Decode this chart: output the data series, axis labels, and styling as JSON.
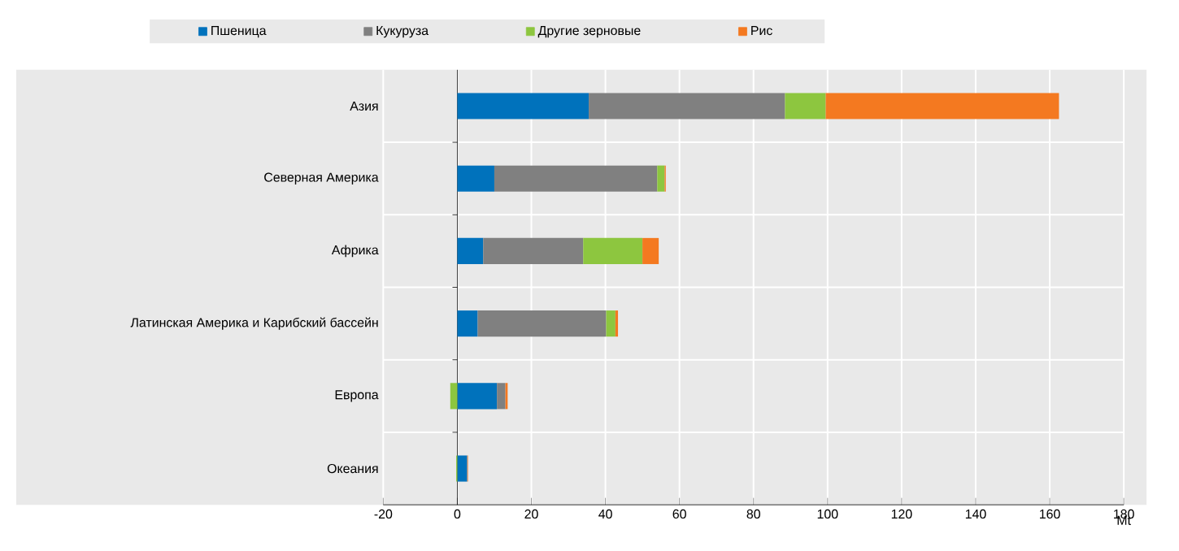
{
  "chart_data": {
    "type": "bar",
    "orientation": "horizontal",
    "stacked": true,
    "xlabel": "Mt",
    "categories": [
      "Азия",
      "Северная Америка",
      "Африка",
      "Латинская Америка и Карибский бассейн",
      "Европа",
      "Океания"
    ],
    "series": [
      {
        "name": "Пшеница",
        "color": "#0072bc",
        "values": [
          35.5,
          10,
          7,
          5.5,
          10.7,
          2.6
        ]
      },
      {
        "name": "Кукуруза",
        "color": "#808080",
        "values": [
          53,
          44,
          27,
          34.7,
          2.3,
          0.2
        ]
      },
      {
        "name": "Другие зерновые",
        "color": "#8dc63f",
        "values": [
          11,
          2,
          16,
          2.5,
          -1.9,
          -0.3
        ]
      },
      {
        "name": "Рис",
        "color": "#f47920",
        "values": [
          63,
          0.3,
          4.4,
          0.7,
          0.6,
          0.1
        ]
      }
    ],
    "xlim": [
      -20,
      180
    ],
    "xticks": [
      -20,
      0,
      20,
      40,
      60,
      80,
      100,
      120,
      140,
      160,
      180
    ],
    "grid": true,
    "legend": "top"
  }
}
